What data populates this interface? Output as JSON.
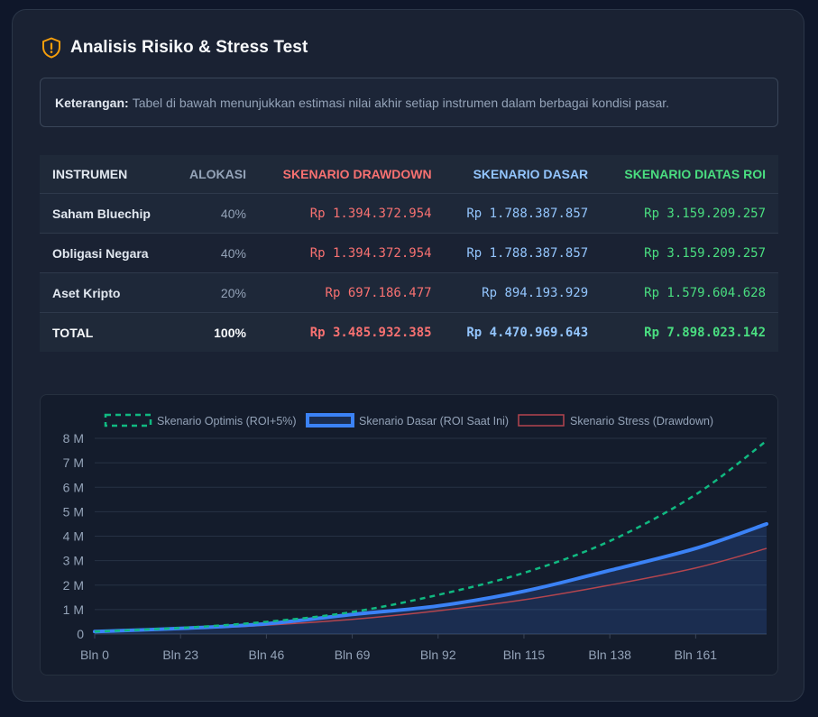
{
  "header": {
    "title": "Analisis Risiko & Stress Test",
    "icon": "shield-alert-icon",
    "accent": "#f59e0b"
  },
  "note": {
    "label": "Keterangan:",
    "text": "Tabel di bawah menunjukkan estimasi nilai akhir setiap instrumen dalam berbagai kondisi pasar."
  },
  "table": {
    "headers": {
      "instrument": "INSTRUMEN",
      "allocation": "ALOKASI",
      "drawdown": "SKENARIO DRAWDOWN",
      "base": "SKENARIO DASAR",
      "optimistic": "SKENARIO DIATAS ROI"
    },
    "rows": [
      {
        "instrument": "Saham Bluechip",
        "allocation": "40%",
        "drawdown": "Rp 1.394.372.954",
        "base": "Rp 1.788.387.857",
        "optimistic": "Rp 3.159.209.257"
      },
      {
        "instrument": "Obligasi Negara",
        "allocation": "40%",
        "drawdown": "Rp 1.394.372.954",
        "base": "Rp 1.788.387.857",
        "optimistic": "Rp 3.159.209.257"
      },
      {
        "instrument": "Aset Kripto",
        "allocation": "20%",
        "drawdown": "Rp 697.186.477",
        "base": "Rp 894.193.929",
        "optimistic": "Rp 1.579.604.628"
      }
    ],
    "total": {
      "instrument": "TOTAL",
      "allocation": "100%",
      "drawdown": "Rp 3.485.932.385",
      "base": "Rp 4.470.969.643",
      "optimistic": "Rp 7.898.023.142"
    }
  },
  "chart_data": {
    "type": "line",
    "legend_position": "top",
    "grid": true,
    "x_tick_labels": [
      "Bln 0",
      "Bln 23",
      "Bln 46",
      "Bln 69",
      "Bln 92",
      "Bln 115",
      "Bln 138",
      "Bln 161"
    ],
    "y_tick_labels": [
      "0",
      "1 M",
      "2 M",
      "3 M",
      "4 M",
      "5 M",
      "6 M",
      "7 M",
      "8 M"
    ],
    "xlim": [
      0,
      180
    ],
    "ylim": [
      0,
      8000000000
    ],
    "series": [
      {
        "name": "Skenario Optimis (ROI+5%)",
        "style": "dashed",
        "color": "#10b981",
        "x": [
          0,
          23,
          46,
          69,
          92,
          115,
          138,
          161,
          180
        ],
        "values": [
          100000000,
          250000000,
          500000000,
          900000000,
          1600000000,
          2500000000,
          3800000000,
          5700000000,
          7900000000
        ]
      },
      {
        "name": "Skenario Dasar (ROI Saat Ini)",
        "style": "solid-thick-filled",
        "color": "#3b82f6",
        "x": [
          0,
          23,
          46,
          69,
          92,
          115,
          138,
          161,
          180
        ],
        "values": [
          100000000,
          230000000,
          420000000,
          800000000,
          1150000000,
          1750000000,
          2600000000,
          3500000000,
          4500000000
        ]
      },
      {
        "name": "Skenario Stress (Drawdown)",
        "style": "solid-thin",
        "color": "#b4454e",
        "x": [
          0,
          23,
          46,
          69,
          92,
          115,
          138,
          161,
          180
        ],
        "values": [
          100000000,
          200000000,
          360000000,
          600000000,
          950000000,
          1400000000,
          2000000000,
          2700000000,
          3500000000
        ]
      }
    ]
  }
}
